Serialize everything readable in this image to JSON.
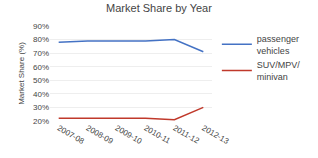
{
  "chart_data": {
    "type": "line",
    "title": "Market Share by Year",
    "ylabel": "Market Share (%)",
    "categories": [
      "2007-08",
      "2008-09",
      "2009-10",
      "2010-11",
      "2011-12",
      "2012-13"
    ],
    "series": [
      {
        "name": "passenger\nvehicles",
        "color": "#4472c4",
        "values": [
          78,
          79,
          79,
          79,
          80,
          71
        ]
      },
      {
        "name": "SUV/MPV/\nminivan",
        "color": "#c0392b",
        "values": [
          22,
          22,
          22,
          22,
          21,
          30
        ]
      }
    ],
    "ylim": [
      20,
      90
    ],
    "yticks": [
      {
        "value": 20,
        "label": "20%"
      },
      {
        "value": 30,
        "label": "30%"
      },
      {
        "value": 40,
        "label": "40%"
      },
      {
        "value": 50,
        "label": "50%"
      },
      {
        "value": 60,
        "label": "60%"
      },
      {
        "value": 70,
        "label": "70%"
      },
      {
        "value": 80,
        "label": "80%"
      },
      {
        "value": 90,
        "label": "90%"
      }
    ],
    "grid": true,
    "legend": "right"
  }
}
